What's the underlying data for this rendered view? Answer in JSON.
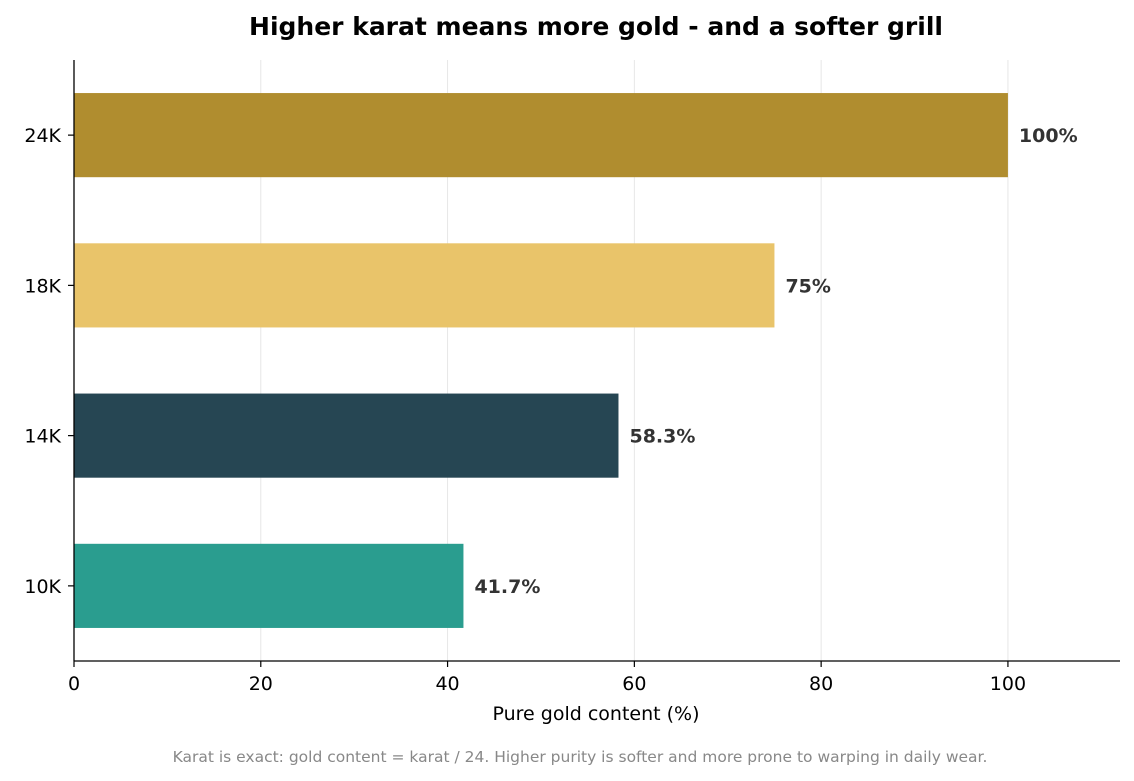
{
  "chart_data": {
    "type": "bar",
    "orientation": "horizontal",
    "title": "Higher karat means more gold - and a softer grill",
    "xlabel": "Pure gold content (%)",
    "ylabel": "",
    "categories": [
      "10K",
      "14K",
      "18K",
      "24K"
    ],
    "values": [
      41.7,
      58.3,
      75,
      100
    ],
    "data_labels": [
      "41.7%",
      "58.3%",
      "75%",
      "100%"
    ],
    "colors": [
      "#2a9d8f",
      "#264653",
      "#e9c46a",
      "#b08d2f"
    ],
    "xlim": [
      0,
      112
    ],
    "xticks": [
      0,
      20,
      40,
      60,
      80,
      100
    ],
    "grid": "vertical",
    "legend": "none"
  },
  "caption": "Karat is exact: gold content = karat / 24. Higher purity is softer and more prone to warping in daily wear."
}
